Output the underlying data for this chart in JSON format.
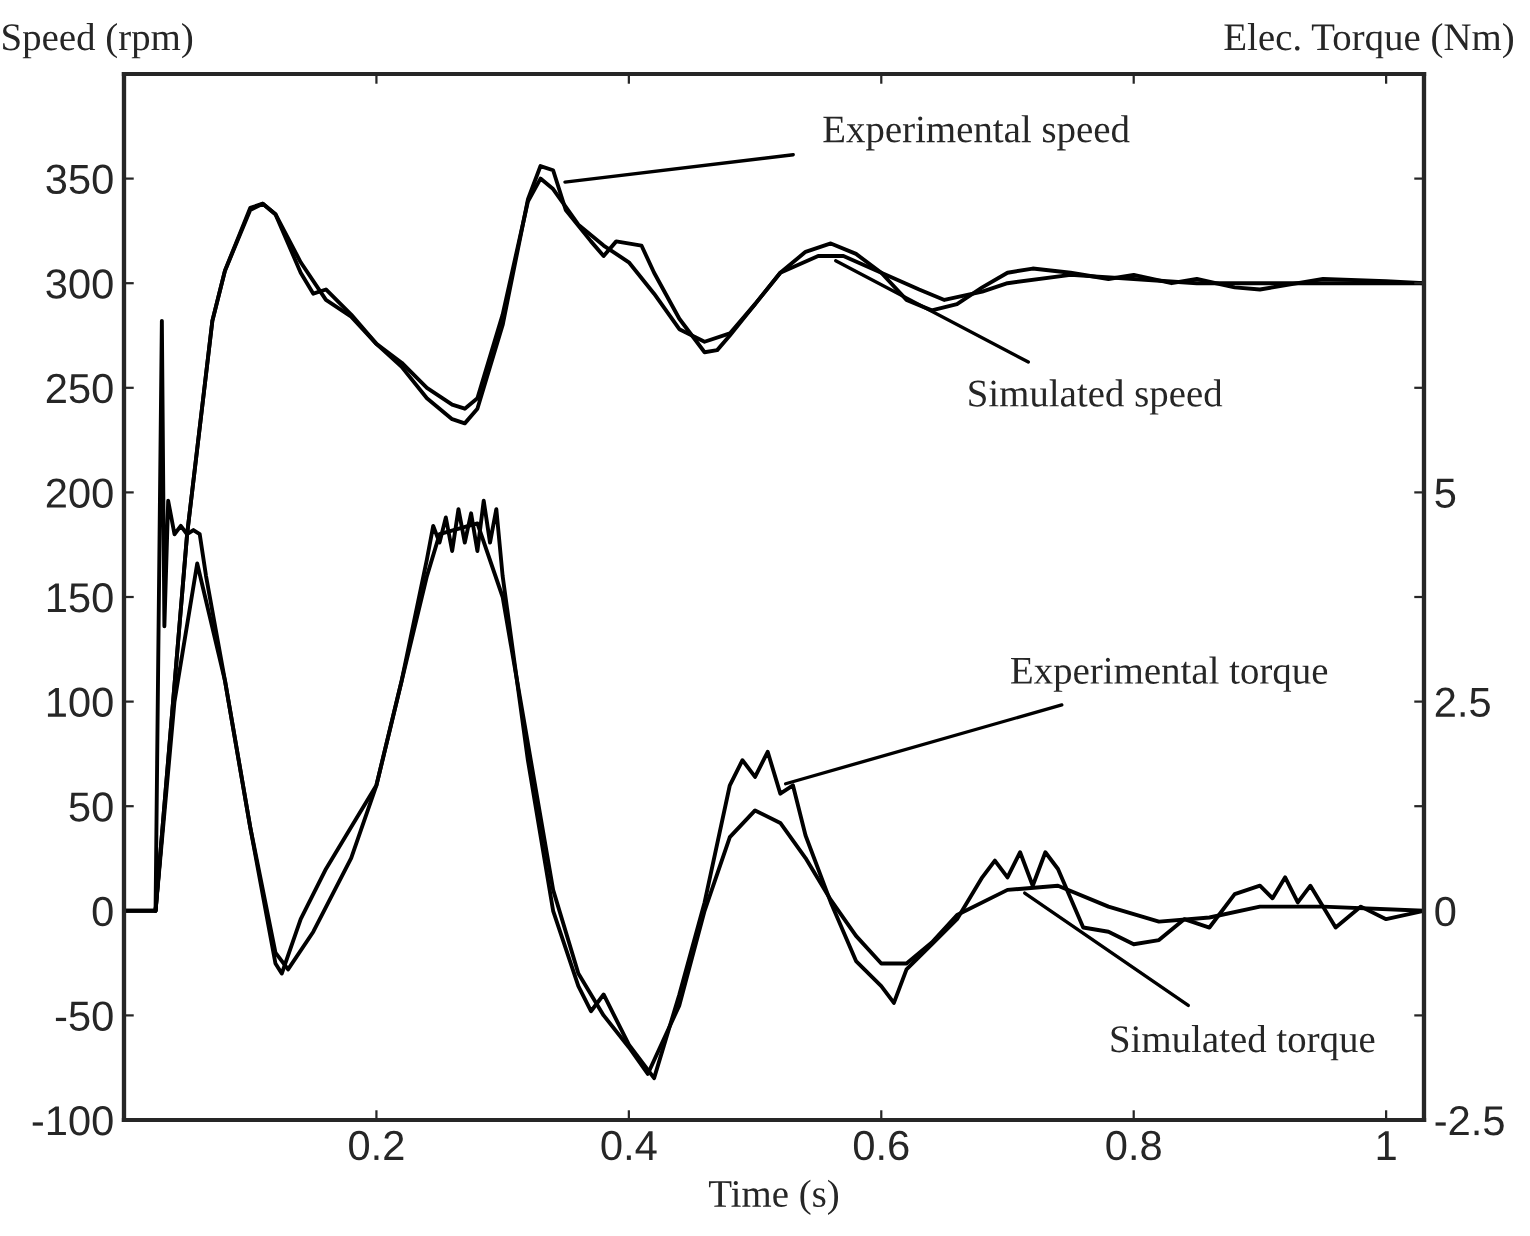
{
  "chart_data": {
    "type": "line",
    "xlabel": "Time (s)",
    "ylabel": "Speed (rpm)",
    "y2label": "Elec. Torque (Nm)",
    "xlim": [
      0,
      1.03
    ],
    "xticks": [
      0.2,
      0.4,
      0.6,
      0.8,
      1
    ],
    "ylim": [
      -100,
      400
    ],
    "yticks": [
      -100,
      -50,
      0,
      50,
      100,
      150,
      200,
      250,
      300,
      350
    ],
    "y2lim": [
      -2.5,
      10
    ],
    "y2ticks": [
      -2.5,
      {
        "value": -1.25,
        "label": null
      },
      0,
      {
        "value": 1.25,
        "label": null
      },
      2.5,
      {
        "value": 3.75,
        "label": null
      },
      5,
      {
        "value": 6.25,
        "label": null
      },
      {
        "value": 7.5,
        "label": null
      },
      {
        "value": 8.75,
        "label": null
      }
    ],
    "grid": false,
    "legend": false,
    "line_style": "solid",
    "marker": "none",
    "series": [
      {
        "color": "#000000",
        "x": [
          0.025,
          0.05,
          0.07,
          0.08,
          0.1,
          0.11,
          0.12,
          0.14,
          0.16,
          0.18,
          0.2,
          0.22,
          0.24,
          0.26,
          0.27,
          0.28,
          0.3,
          0.32,
          0.33,
          0.34,
          0.36,
          0.38,
          0.4,
          0.42,
          0.44,
          0.46,
          0.48,
          0.5,
          0.52,
          0.55,
          0.57,
          0.6,
          0.63,
          0.65,
          0.68,
          0.7,
          0.75,
          0.8,
          0.85,
          0.9,
          0.95,
          1.03
        ],
        "values": [
          0,
          180,
          282,
          306,
          335,
          338,
          333,
          310,
          292,
          284,
          271,
          262,
          250,
          242,
          240,
          245,
          285,
          339,
          350,
          345,
          328,
          318,
          310,
          295,
          278,
          272,
          276,
          290,
          305,
          313,
          313,
          305,
          297,
          292,
          296,
          300,
          304,
          302,
          300,
          300,
          300,
          300
        ]
      },
      {
        "color": "#000000",
        "x": [
          0.025,
          0.05,
          0.07,
          0.08,
          0.1,
          0.11,
          0.12,
          0.14,
          0.15,
          0.16,
          0.18,
          0.2,
          0.22,
          0.24,
          0.26,
          0.27,
          0.28,
          0.3,
          0.32,
          0.33,
          0.34,
          0.35,
          0.37,
          0.38,
          0.39,
          0.41,
          0.42,
          0.44,
          0.46,
          0.47,
          0.48,
          0.5,
          0.52,
          0.54,
          0.56,
          0.58,
          0.6,
          0.62,
          0.64,
          0.66,
          0.68,
          0.7,
          0.72,
          0.75,
          0.78,
          0.8,
          0.83,
          0.85,
          0.88,
          0.9,
          0.93,
          0.95,
          1.0,
          1.03
        ],
        "values": [
          0,
          180,
          282,
          306,
          336,
          338,
          333,
          305,
          295,
          297,
          285,
          271,
          260,
          245,
          235,
          233,
          240,
          280,
          340,
          356,
          354,
          335,
          320,
          313,
          320,
          318,
          305,
          283,
          267,
          268,
          275,
          290,
          305,
          315,
          319,
          314,
          305,
          292,
          287,
          290,
          298,
          305,
          307,
          305,
          302,
          304,
          300,
          302,
          298,
          297,
          300,
          302,
          301,
          300
        ]
      },
      {
        "color": "#000000",
        "axis": "y2",
        "x": [
          0,
          0.025,
          0.04,
          0.058,
          0.08,
          0.1,
          0.12,
          0.13,
          0.15,
          0.18,
          0.2,
          0.22,
          0.24,
          0.25,
          0.28,
          0.3,
          0.32,
          0.34,
          0.36,
          0.38,
          0.4,
          0.415,
          0.44,
          0.46,
          0.48,
          0.5,
          0.52,
          0.54,
          0.56,
          0.58,
          0.6,
          0.62,
          0.64,
          0.66,
          0.7,
          0.74,
          0.78,
          0.82,
          0.86,
          0.9,
          0.95,
          1.03
        ],
        "values": [
          0,
          0,
          2.5,
          4.15,
          2.75,
          1.0,
          -0.5,
          -0.7,
          -0.25,
          0.63,
          1.5,
          2.75,
          4.0,
          4.5,
          4.63,
          3.75,
          2.0,
          0.25,
          -0.75,
          -1.25,
          -1.63,
          -1.95,
          -1.13,
          0,
          0.88,
          1.2,
          1.05,
          0.63,
          0.13,
          -0.3,
          -0.63,
          -0.63,
          -0.38,
          -0.05,
          0.25,
          0.3,
          0.05,
          -0.13,
          -0.08,
          0.05,
          0.05,
          0
        ]
      },
      {
        "color": "#000000",
        "axis": "y2",
        "x": [
          0,
          0.025,
          0.03,
          0.032,
          0.035,
          0.04,
          0.045,
          0.05,
          0.055,
          0.06,
          0.065,
          0.08,
          0.1,
          0.12,
          0.125,
          0.14,
          0.16,
          0.18,
          0.2,
          0.22,
          0.24,
          0.245,
          0.25,
          0.255,
          0.26,
          0.265,
          0.27,
          0.275,
          0.28,
          0.285,
          0.29,
          0.295,
          0.3,
          0.32,
          0.34,
          0.36,
          0.37,
          0.38,
          0.4,
          0.42,
          0.44,
          0.46,
          0.48,
          0.49,
          0.5,
          0.51,
          0.52,
          0.53,
          0.54,
          0.56,
          0.58,
          0.6,
          0.61,
          0.62,
          0.64,
          0.66,
          0.68,
          0.69,
          0.7,
          0.71,
          0.72,
          0.73,
          0.74,
          0.76,
          0.78,
          0.8,
          0.82,
          0.84,
          0.86,
          0.88,
          0.9,
          0.91,
          0.92,
          0.93,
          0.94,
          0.96,
          0.98,
          1.0,
          1.03
        ],
        "values": [
          0,
          0,
          7.05,
          3.4,
          4.9,
          4.5,
          4.6,
          4.5,
          4.55,
          4.5,
          4.0,
          2.75,
          1.0,
          -0.63,
          -0.75,
          -0.1,
          0.5,
          1.0,
          1.5,
          2.75,
          4.2,
          4.6,
          4.4,
          4.7,
          4.3,
          4.8,
          4.4,
          4.75,
          4.3,
          4.9,
          4.4,
          4.8,
          4.0,
          1.8,
          0.0,
          -0.9,
          -1.2,
          -1.0,
          -1.6,
          -2.0,
          -1.0,
          0.1,
          1.5,
          1.8,
          1.6,
          1.9,
          1.4,
          1.5,
          0.9,
          0.1,
          -0.6,
          -0.9,
          -1.1,
          -0.7,
          -0.4,
          -0.1,
          0.4,
          0.6,
          0.4,
          0.7,
          0.3,
          0.7,
          0.5,
          -0.2,
          -0.25,
          -0.4,
          -0.35,
          -0.1,
          -0.2,
          0.2,
          0.3,
          0.15,
          0.4,
          0.1,
          0.3,
          -0.2,
          0.05,
          -0.1,
          0
        ]
      }
    ],
    "annotations": [
      {
        "text": "Experimental speed",
        "x": 0.345,
        "y": 348
      },
      {
        "text": "Simulated speed",
        "x": 0.56,
        "y": 312
      },
      {
        "text": "Experimental torque",
        "x": 0.52,
        "y": 60
      },
      {
        "text": "Simulated torque",
        "x": 0.71,
        "y": 10
      }
    ]
  }
}
